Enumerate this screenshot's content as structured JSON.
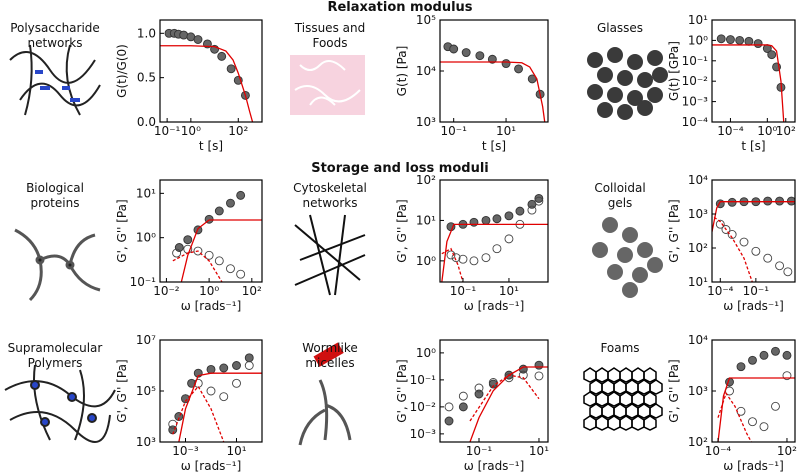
{
  "sections": [
    "Relaxation modulus",
    "Storage and loss moduli"
  ],
  "materials": [
    [
      "Polysaccharide",
      "networks"
    ],
    [
      "Tissues and",
      "Foods"
    ],
    [
      "Glasses"
    ],
    [
      "Biological",
      "proteins"
    ],
    [
      "Cytoskeletal",
      "networks"
    ],
    [
      "Colloidal",
      "gels"
    ],
    [
      "Supramolecular",
      "Polymers"
    ],
    [
      "Wormlike",
      "micelles"
    ],
    [
      "Foams"
    ]
  ],
  "chart_data": [
    {
      "type": "scatter",
      "x_label": "t [s]",
      "y_label": "G(t)/G(0)",
      "log_x": true,
      "log_y": false,
      "xlim": [
        0.05,
        1000
      ],
      "ylim": [
        0,
        1.15
      ],
      "xticks": [
        {
          "value": 0.1,
          "label": "10⁻¹"
        },
        {
          "value": 1,
          "label": "10⁰"
        },
        {
          "value": 100,
          "label": "10²"
        }
      ],
      "yticks": [
        {
          "value": 0,
          "label": "0.0"
        },
        {
          "value": 0.5,
          "label": "0.5"
        },
        {
          "value": 1,
          "label": "1.0"
        }
      ],
      "series": [
        {
          "style": "filled",
          "color": "#666666",
          "x": [
            0.12,
            0.2,
            0.3,
            0.5,
            1,
            2,
            5,
            10,
            20,
            50,
            100,
            200
          ],
          "values": [
            1.0,
            1.0,
            0.99,
            0.98,
            0.96,
            0.93,
            0.88,
            0.82,
            0.74,
            0.6,
            0.47,
            0.3
          ]
        },
        {
          "style": "line",
          "color": "#e00000",
          "x": [
            0.05,
            1,
            10,
            30,
            60,
            100,
            200,
            300,
            400
          ],
          "values": [
            0.86,
            0.86,
            0.85,
            0.8,
            0.7,
            0.55,
            0.3,
            0.12,
            0.0
          ]
        }
      ]
    },
    {
      "type": "scatter",
      "x_label": "t [s]",
      "y_label": "G(t) [Pa]",
      "log_x": true,
      "log_y": true,
      "xlim": [
        0.03,
        400
      ],
      "ylim": [
        1000,
        100000
      ],
      "xticks": [
        {
          "value": 0.1,
          "label": "10⁻¹"
        },
        {
          "value": 10,
          "label": "10¹"
        }
      ],
      "yticks": [
        {
          "value": 1000,
          "label": "10³"
        },
        {
          "value": 10000,
          "label": "10⁴"
        },
        {
          "value": 100000,
          "label": "10⁵"
        }
      ],
      "series": [
        {
          "style": "filled",
          "color": "#666666",
          "x": [
            0.06,
            0.1,
            0.3,
            1,
            3,
            10,
            30,
            100,
            200
          ],
          "values": [
            30000,
            27000,
            23000,
            20000,
            17000,
            14000,
            11000,
            7000,
            3500
          ]
        },
        {
          "style": "line",
          "color": "#e00000",
          "x": [
            0.03,
            10,
            40,
            80,
            150,
            250,
            300
          ],
          "values": [
            15000,
            15000,
            14500,
            12000,
            7000,
            2000,
            1000
          ]
        }
      ]
    },
    {
      "type": "scatter",
      "x_label": "t [s]",
      "y_label": "G(t) [GPa]",
      "log_x": true,
      "log_y": true,
      "xlim": [
        1e-06,
        1000
      ],
      "ylim": [
        0.0001,
        10
      ],
      "xticks": [
        {
          "value": 0.0001,
          "label": "10⁻⁴"
        },
        {
          "value": 1,
          "label": "10⁰"
        },
        {
          "value": 100,
          "label": "10²"
        }
      ],
      "yticks": [
        {
          "value": 0.0001,
          "label": "10⁻⁴"
        },
        {
          "value": 0.001,
          "label": "10⁻³"
        },
        {
          "value": 0.01,
          "label": "10⁻²"
        },
        {
          "value": 0.1,
          "label": "10⁻¹"
        },
        {
          "value": 1,
          "label": "10⁰"
        },
        {
          "value": 10,
          "label": "10¹"
        }
      ],
      "series": [
        {
          "style": "filled",
          "color": "#666666",
          "x": [
            1e-05,
            0.0001,
            0.001,
            0.01,
            0.1,
            1,
            3,
            10,
            30
          ],
          "values": [
            1.2,
            1.1,
            1.0,
            0.9,
            0.7,
            0.4,
            0.2,
            0.05,
            0.005
          ]
        },
        {
          "style": "line",
          "color": "#e00000",
          "x": [
            1e-06,
            1,
            3,
            10,
            30,
            60
          ],
          "values": [
            0.6,
            0.6,
            0.55,
            0.3,
            0.01,
            0.0001
          ]
        }
      ]
    },
    {
      "type": "scatter",
      "x_label": "ω [rads⁻¹]",
      "y_label": "G', G'' [Pa]",
      "log_x": true,
      "log_y": true,
      "xlim": [
        0.005,
        300
      ],
      "ylim": [
        0.1,
        20
      ],
      "xticks": [
        {
          "value": 0.01,
          "label": "10⁻²"
        },
        {
          "value": 1,
          "label": "10⁰"
        },
        {
          "value": 100,
          "label": "10²"
        }
      ],
      "yticks": [
        {
          "value": 0.1,
          "label": "10⁻¹"
        },
        {
          "value": 1,
          "label": "10⁰"
        },
        {
          "value": 10,
          "label": "10¹"
        }
      ],
      "series": [
        {
          "style": "filled",
          "color": "#666666",
          "x": [
            0.04,
            0.1,
            0.3,
            1,
            3,
            10,
            30
          ],
          "values": [
            0.6,
            0.9,
            1.5,
            2.6,
            4,
            6,
            9
          ]
        },
        {
          "style": "open",
          "color": "#444444",
          "x": [
            0.03,
            0.1,
            0.3,
            1,
            3,
            10,
            30
          ],
          "values": [
            0.45,
            0.55,
            0.5,
            0.4,
            0.3,
            0.2,
            0.15
          ]
        },
        {
          "style": "line",
          "color": "#e00000",
          "x": [
            0.05,
            0.1,
            0.3,
            1,
            300
          ],
          "values": [
            0.1,
            0.4,
            1.6,
            2.5,
            2.5
          ]
        },
        {
          "style": "dashed",
          "color": "#e00000",
          "x": [
            0.02,
            0.1,
            0.3,
            1,
            4
          ],
          "values": [
            0.3,
            0.45,
            0.5,
            0.3,
            0.1
          ]
        }
      ]
    },
    {
      "type": "scatter",
      "x_label": "ω [rads⁻¹]",
      "y_label": "G', G'' [Pa]",
      "log_x": true,
      "log_y": true,
      "xlim": [
        0.01,
        500
      ],
      "ylim": [
        0.3,
        100
      ],
      "xticks": [
        {
          "value": 0.1,
          "label": "10⁻¹"
        },
        {
          "value": 10,
          "label": "10¹"
        }
      ],
      "yticks": [
        {
          "value": 1,
          "label": "10⁰"
        },
        {
          "value": 10,
          "label": "10¹"
        },
        {
          "value": 100,
          "label": "10²"
        }
      ],
      "series": [
        {
          "style": "filled",
          "color": "#666666",
          "x": [
            0.03,
            0.1,
            0.3,
            1,
            3,
            10,
            30,
            100,
            200
          ],
          "values": [
            7,
            8,
            9,
            10,
            11,
            13,
            17,
            25,
            35
          ]
        },
        {
          "style": "open",
          "color": "#444444",
          "x": [
            0.03,
            0.05,
            0.1,
            0.3,
            1,
            3,
            10,
            30,
            100,
            200
          ],
          "values": [
            1.4,
            1.2,
            1.1,
            1.0,
            1.2,
            2,
            3.5,
            8,
            18,
            30
          ]
        },
        {
          "style": "line",
          "color": "#e00000",
          "x": [
            0.012,
            0.02,
            0.04,
            500
          ],
          "values": [
            0.3,
            3,
            8,
            8
          ]
        },
        {
          "style": "dashed",
          "color": "#e00000",
          "x": [
            0.012,
            0.03,
            0.06,
            0.1
          ],
          "values": [
            1.5,
            2,
            0.8,
            0.3
          ]
        }
      ]
    },
    {
      "type": "scatter",
      "x_label": "ω [rads⁻¹]",
      "y_label": "G', G'' [Pa]",
      "log_x": true,
      "log_y": true,
      "xlim": [
        2e-05,
        200
      ],
      "ylim": [
        10,
        10000
      ],
      "xticks": [
        {
          "value": 0.0001,
          "label": "10⁻⁴"
        },
        {
          "value": 0.1,
          "label": "10⁻¹"
        }
      ],
      "yticks": [
        {
          "value": 10,
          "label": "10¹"
        },
        {
          "value": 100,
          "label": "10²"
        },
        {
          "value": 1000,
          "label": "10³"
        },
        {
          "value": 10000,
          "label": "10⁴"
        }
      ],
      "series": [
        {
          "style": "filled",
          "color": "#666666",
          "x": [
            0.0001,
            0.001,
            0.01,
            0.1,
            1,
            10,
            100
          ],
          "values": [
            2000,
            2200,
            2300,
            2300,
            2400,
            2400,
            2400
          ]
        },
        {
          "style": "open",
          "color": "#444444",
          "x": [
            0.0001,
            0.0003,
            0.001,
            0.01,
            0.1,
            1,
            10,
            50
          ],
          "values": [
            500,
            350,
            250,
            150,
            80,
            50,
            30,
            20
          ]
        },
        {
          "style": "line",
          "color": "#e00000",
          "x": [
            2e-05,
            5e-05,
            0.0001,
            200
          ],
          "values": [
            300,
            1500,
            2300,
            2300
          ]
        },
        {
          "style": "dashed",
          "color": "#e00000",
          "x": [
            3e-05,
            0.0001,
            0.001,
            0.01,
            0.05
          ],
          "values": [
            800,
            600,
            200,
            50,
            10
          ]
        }
      ]
    },
    {
      "type": "scatter",
      "x_label": "ω [rads⁻¹]",
      "y_label": "G', G'' [Pa]",
      "log_x": true,
      "log_y": true,
      "xlim": [
        1e-05,
        1000
      ],
      "ylim": [
        1000,
        10000000
      ],
      "xticks": [
        {
          "value": 0.001,
          "label": "10⁻³"
        },
        {
          "value": 10,
          "label": "10¹"
        }
      ],
      "yticks": [
        {
          "value": 1000,
          "label": "10³"
        },
        {
          "value": 100000,
          "label": "10⁵"
        },
        {
          "value": 10000000,
          "label": "10⁷"
        }
      ],
      "series": [
        {
          "style": "filled",
          "color": "#666666",
          "x": [
            0.0001,
            0.0003,
            0.001,
            0.003,
            0.01,
            0.1,
            1,
            10,
            100
          ],
          "values": [
            3000,
            10000,
            50000,
            200000,
            500000,
            700000,
            800000,
            1000000,
            2000000
          ]
        },
        {
          "style": "open",
          "color": "#444444",
          "x": [
            0.0001,
            0.001,
            0.01,
            0.1,
            1,
            10,
            100
          ],
          "values": [
            5000,
            50000,
            200000,
            100000,
            60000,
            200000,
            1000000
          ]
        },
        {
          "style": "line",
          "color": "#e00000",
          "x": [
            0.0003,
            0.001,
            0.01,
            0.1,
            1000
          ],
          "values": [
            1000,
            20000,
            400000,
            500000,
            500000
          ]
        },
        {
          "style": "dashed",
          "color": "#e00000",
          "x": [
            0.0001,
            0.001,
            0.01,
            0.1,
            1
          ],
          "values": [
            2000,
            40000,
            150000,
            20000,
            1000
          ]
        }
      ]
    },
    {
      "type": "scatter",
      "x_label": "ω [rads⁻¹]",
      "y_label": "G', G'' [Pa]",
      "log_x": true,
      "log_y": true,
      "xlim": [
        0.005,
        20
      ],
      "ylim": [
        0.0005,
        3
      ],
      "xticks": [
        {
          "value": 0.1,
          "label": "10⁻¹"
        },
        {
          "value": 10,
          "label": "10¹"
        }
      ],
      "yticks": [
        {
          "value": 0.001,
          "label": "10⁻³"
        },
        {
          "value": 0.01,
          "label": "10⁻²"
        },
        {
          "value": 0.1,
          "label": "10⁻¹"
        },
        {
          "value": 1,
          "label": "10⁰"
        }
      ],
      "series": [
        {
          "style": "filled",
          "color": "#666666",
          "x": [
            0.01,
            0.03,
            0.1,
            0.3,
            1,
            3,
            10
          ],
          "values": [
            0.003,
            0.01,
            0.03,
            0.07,
            0.15,
            0.25,
            0.35
          ]
        },
        {
          "style": "open",
          "color": "#444444",
          "x": [
            0.01,
            0.03,
            0.1,
            0.3,
            1,
            3,
            10
          ],
          "values": [
            0.01,
            0.025,
            0.05,
            0.08,
            0.12,
            0.15,
            0.14
          ]
        },
        {
          "style": "line",
          "color": "#e00000",
          "x": [
            0.05,
            0.1,
            0.3,
            1,
            3,
            20
          ],
          "values": [
            0.0005,
            0.004,
            0.04,
            0.15,
            0.3,
            0.3
          ]
        },
        {
          "style": "dashed",
          "color": "#e00000",
          "x": [
            0.05,
            0.3,
            1,
            3,
            10
          ],
          "values": [
            0.003,
            0.06,
            0.15,
            0.12,
            0.02
          ]
        }
      ]
    },
    {
      "type": "scatter",
      "x_label": "ω [rads⁻¹]",
      "y_label": "G', G'' [Pa]",
      "log_x": true,
      "log_y": true,
      "xlim": [
        3e-05,
        500
      ],
      "ylim": [
        100,
        10000
      ],
      "xticks": [
        {
          "value": 0.0001,
          "label": "10⁻⁴"
        },
        {
          "value": 100,
          "label": "10²"
        }
      ],
      "yticks": [
        {
          "value": 100,
          "label": "10²"
        },
        {
          "value": 1000,
          "label": "10³"
        },
        {
          "value": 10000,
          "label": "10⁴"
        }
      ],
      "series": [
        {
          "style": "filled",
          "color": "#666666",
          "x": [
            0.001,
            0.01,
            0.1,
            1,
            10,
            100
          ],
          "values": [
            1500,
            3000,
            4000,
            5000,
            6000,
            5000
          ]
        },
        {
          "style": "open",
          "color": "#444444",
          "x": [
            0.001,
            0.01,
            0.1,
            1,
            10,
            100
          ],
          "values": [
            1000,
            400,
            250,
            200,
            500,
            2000
          ]
        },
        {
          "style": "line",
          "color": "#e00000",
          "x": [
            0.0001,
            0.0003,
            0.001,
            500
          ],
          "values": [
            100,
            800,
            1800,
            1800
          ]
        },
        {
          "style": "dashed",
          "color": "#e00000",
          "x": [
            0.0001,
            0.0005,
            0.003,
            0.03,
            0.08
          ],
          "values": [
            300,
            900,
            500,
            150,
            100
          ]
        }
      ]
    }
  ]
}
